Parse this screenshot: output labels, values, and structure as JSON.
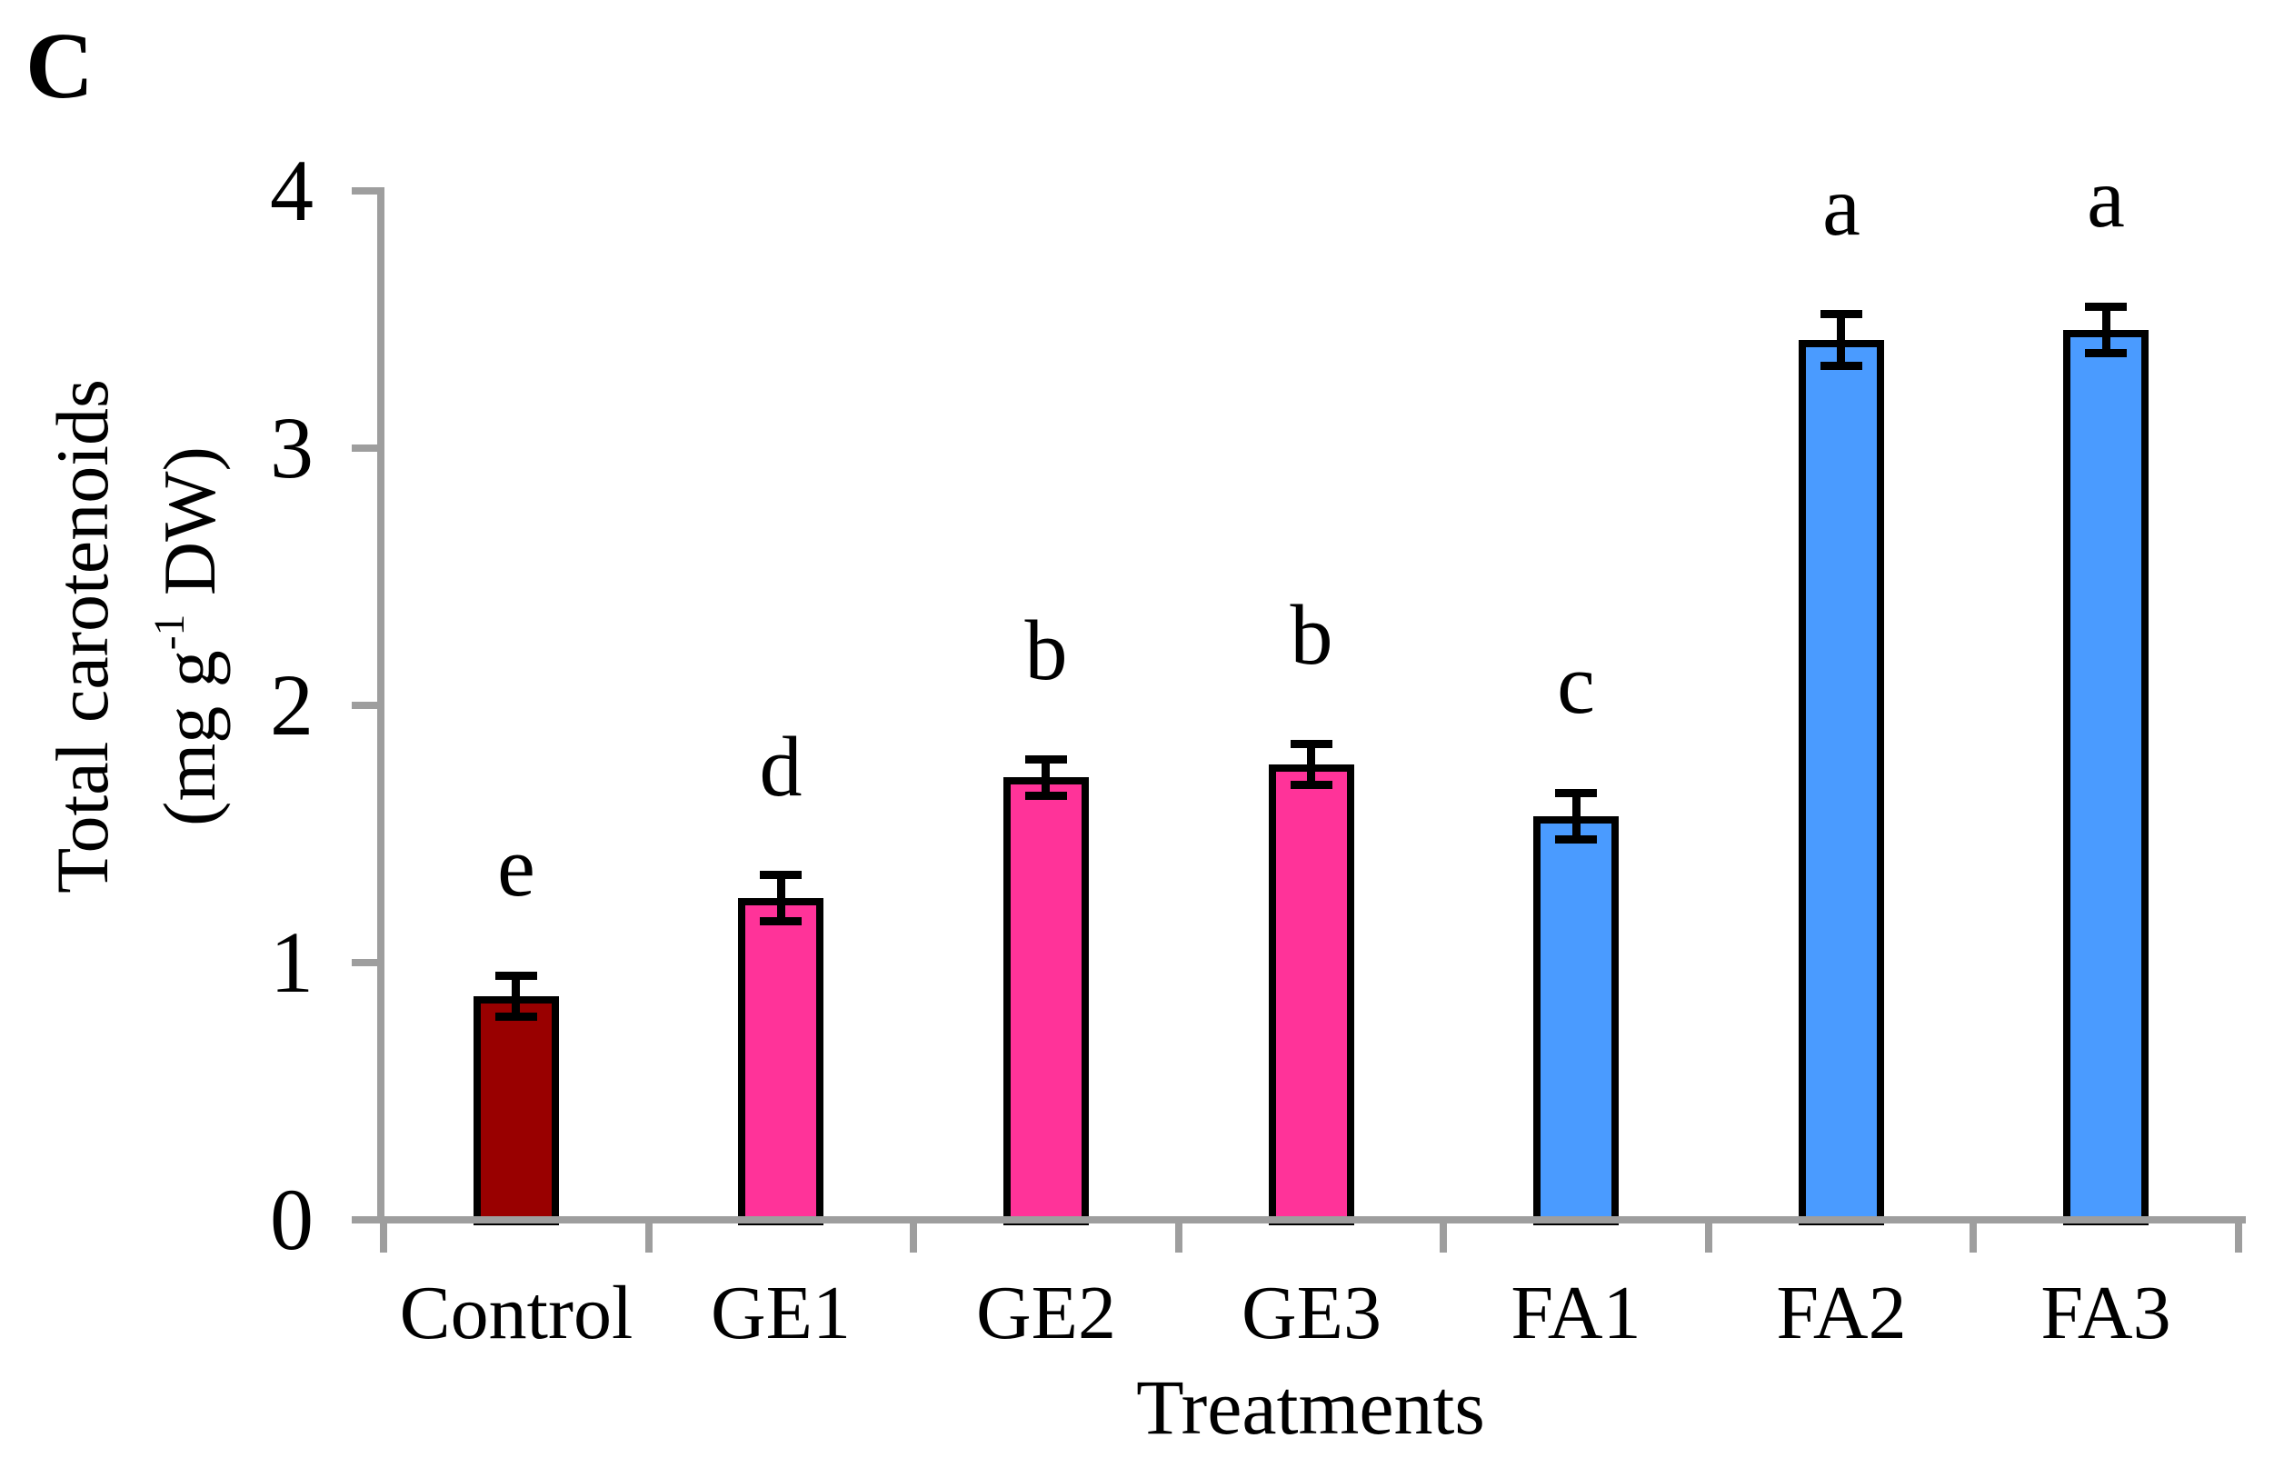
{
  "figure": {
    "panel_label": "C",
    "background_color": "#FFFFFF",
    "y_axis": {
      "title_line1": "Total carotenoids",
      "title_line2_prefix": "(mg g",
      "title_line2_sup": "-1",
      "title_line2_suffix": " DW)",
      "tick_labels": [
        "0",
        "1",
        "2",
        "3",
        "4"
      ]
    },
    "x_axis": {
      "title": "Treatments"
    }
  },
  "chart_data": {
    "type": "bar",
    "title": "",
    "xlabel": "Treatments",
    "ylabel": "Total carotenoids (mg g-1 DW)",
    "categories": [
      "Control",
      "GE1",
      "GE2",
      "GE3",
      "FA1",
      "FA2",
      "FA3"
    ],
    "values": [
      0.87,
      1.25,
      1.72,
      1.77,
      1.57,
      3.42,
      3.46
    ],
    "error_bars": [
      0.08,
      0.09,
      0.07,
      0.08,
      0.09,
      0.1,
      0.09
    ],
    "significance_letters": [
      "e",
      "d",
      "b",
      "b",
      "c",
      "a",
      "a"
    ],
    "bar_colors": [
      "#990000",
      "#FF3399",
      "#FF3399",
      "#FF3399",
      "#4A9BFF",
      "#4A9BFF",
      "#4A9BFF"
    ],
    "color_groups": [
      {
        "name": "Control",
        "color": "#990000"
      },
      {
        "name": "GE",
        "color": "#FF3399"
      },
      {
        "name": "FA",
        "color": "#4A9BFF"
      }
    ],
    "ylim": [
      0,
      4
    ],
    "yticks": [
      0,
      1,
      2,
      3,
      4
    ],
    "grid": false,
    "legend": "none",
    "axis_color": "#9E9E9E",
    "error_bar_color": "#000000",
    "text_color": "#000000"
  }
}
